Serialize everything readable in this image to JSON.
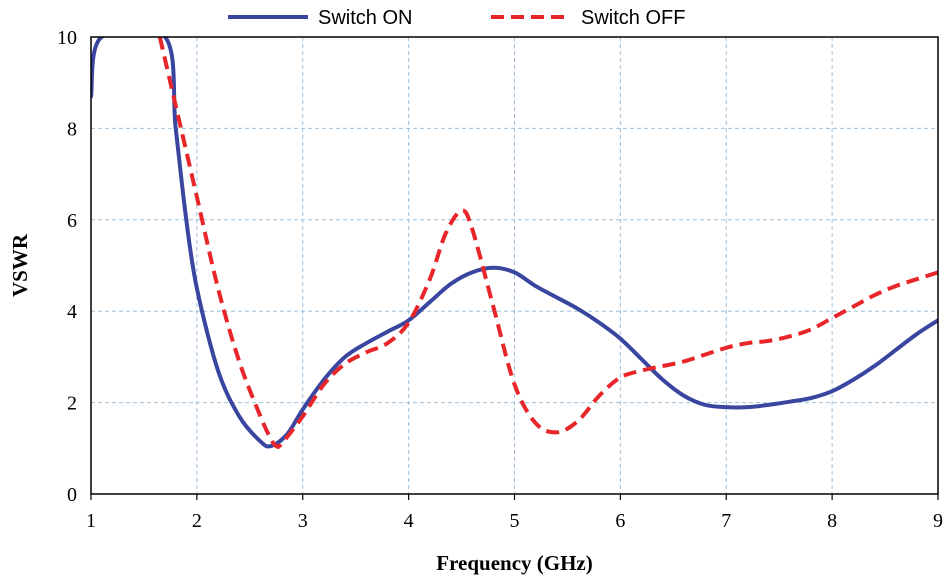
{
  "chart_data": {
    "type": "line",
    "title": "",
    "xlabel": "Frequency (GHz)",
    "ylabel": "VSWR",
    "xlim": [
      1,
      9
    ],
    "ylim": [
      0,
      10
    ],
    "xticks": [
      1,
      2,
      3,
      4,
      5,
      6,
      7,
      8,
      9
    ],
    "yticks": [
      0,
      2,
      4,
      6,
      8,
      10
    ],
    "grid": true,
    "legend": "top-center",
    "series": [
      {
        "name": "Switch ON",
        "color": "#3a45a0",
        "style": "solid",
        "points": [
          [
            1.0,
            8.7
          ],
          [
            1.1,
            10.0
          ],
          [
            1.7,
            10.0
          ],
          [
            1.8,
            8.0
          ],
          [
            1.9,
            6.0
          ],
          [
            2.0,
            4.5
          ],
          [
            2.2,
            2.7
          ],
          [
            2.4,
            1.7
          ],
          [
            2.6,
            1.15
          ],
          [
            2.7,
            1.05
          ],
          [
            2.85,
            1.3
          ],
          [
            3.0,
            1.85
          ],
          [
            3.2,
            2.5
          ],
          [
            3.4,
            3.0
          ],
          [
            3.6,
            3.3
          ],
          [
            3.8,
            3.55
          ],
          [
            4.0,
            3.8
          ],
          [
            4.2,
            4.2
          ],
          [
            4.4,
            4.6
          ],
          [
            4.6,
            4.85
          ],
          [
            4.8,
            4.95
          ],
          [
            5.0,
            4.85
          ],
          [
            5.2,
            4.55
          ],
          [
            5.4,
            4.3
          ],
          [
            5.6,
            4.05
          ],
          [
            5.8,
            3.75
          ],
          [
            6.0,
            3.4
          ],
          [
            6.2,
            2.95
          ],
          [
            6.4,
            2.5
          ],
          [
            6.6,
            2.15
          ],
          [
            6.8,
            1.95
          ],
          [
            7.0,
            1.9
          ],
          [
            7.2,
            1.9
          ],
          [
            7.4,
            1.95
          ],
          [
            7.6,
            2.02
          ],
          [
            7.8,
            2.1
          ],
          [
            8.0,
            2.25
          ],
          [
            8.2,
            2.5
          ],
          [
            8.4,
            2.8
          ],
          [
            8.6,
            3.15
          ],
          [
            8.8,
            3.5
          ],
          [
            9.0,
            3.8
          ]
        ]
      },
      {
        "name": "Switch OFF",
        "color": "#e8262a",
        "style": "dashed",
        "points": [
          [
            1.65,
            10.0
          ],
          [
            1.8,
            8.5
          ],
          [
            2.0,
            6.5
          ],
          [
            2.2,
            4.5
          ],
          [
            2.4,
            2.9
          ],
          [
            2.6,
            1.7
          ],
          [
            2.7,
            1.2
          ],
          [
            2.75,
            1.05
          ],
          [
            2.8,
            1.1
          ],
          [
            3.0,
            1.7
          ],
          [
            3.2,
            2.4
          ],
          [
            3.4,
            2.85
          ],
          [
            3.6,
            3.1
          ],
          [
            3.8,
            3.3
          ],
          [
            4.0,
            3.75
          ],
          [
            4.2,
            4.7
          ],
          [
            4.35,
            5.7
          ],
          [
            4.5,
            6.2
          ],
          [
            4.6,
            5.8
          ],
          [
            4.8,
            4.1
          ],
          [
            5.0,
            2.4
          ],
          [
            5.2,
            1.55
          ],
          [
            5.4,
            1.35
          ],
          [
            5.6,
            1.6
          ],
          [
            5.8,
            2.15
          ],
          [
            6.0,
            2.55
          ],
          [
            6.2,
            2.7
          ],
          [
            6.4,
            2.8
          ],
          [
            6.6,
            2.9
          ],
          [
            6.8,
            3.05
          ],
          [
            7.0,
            3.2
          ],
          [
            7.2,
            3.3
          ],
          [
            7.4,
            3.35
          ],
          [
            7.6,
            3.45
          ],
          [
            7.8,
            3.6
          ],
          [
            8.0,
            3.85
          ],
          [
            8.2,
            4.1
          ],
          [
            8.4,
            4.35
          ],
          [
            8.6,
            4.55
          ],
          [
            8.8,
            4.7
          ],
          [
            9.0,
            4.85
          ]
        ]
      }
    ]
  }
}
